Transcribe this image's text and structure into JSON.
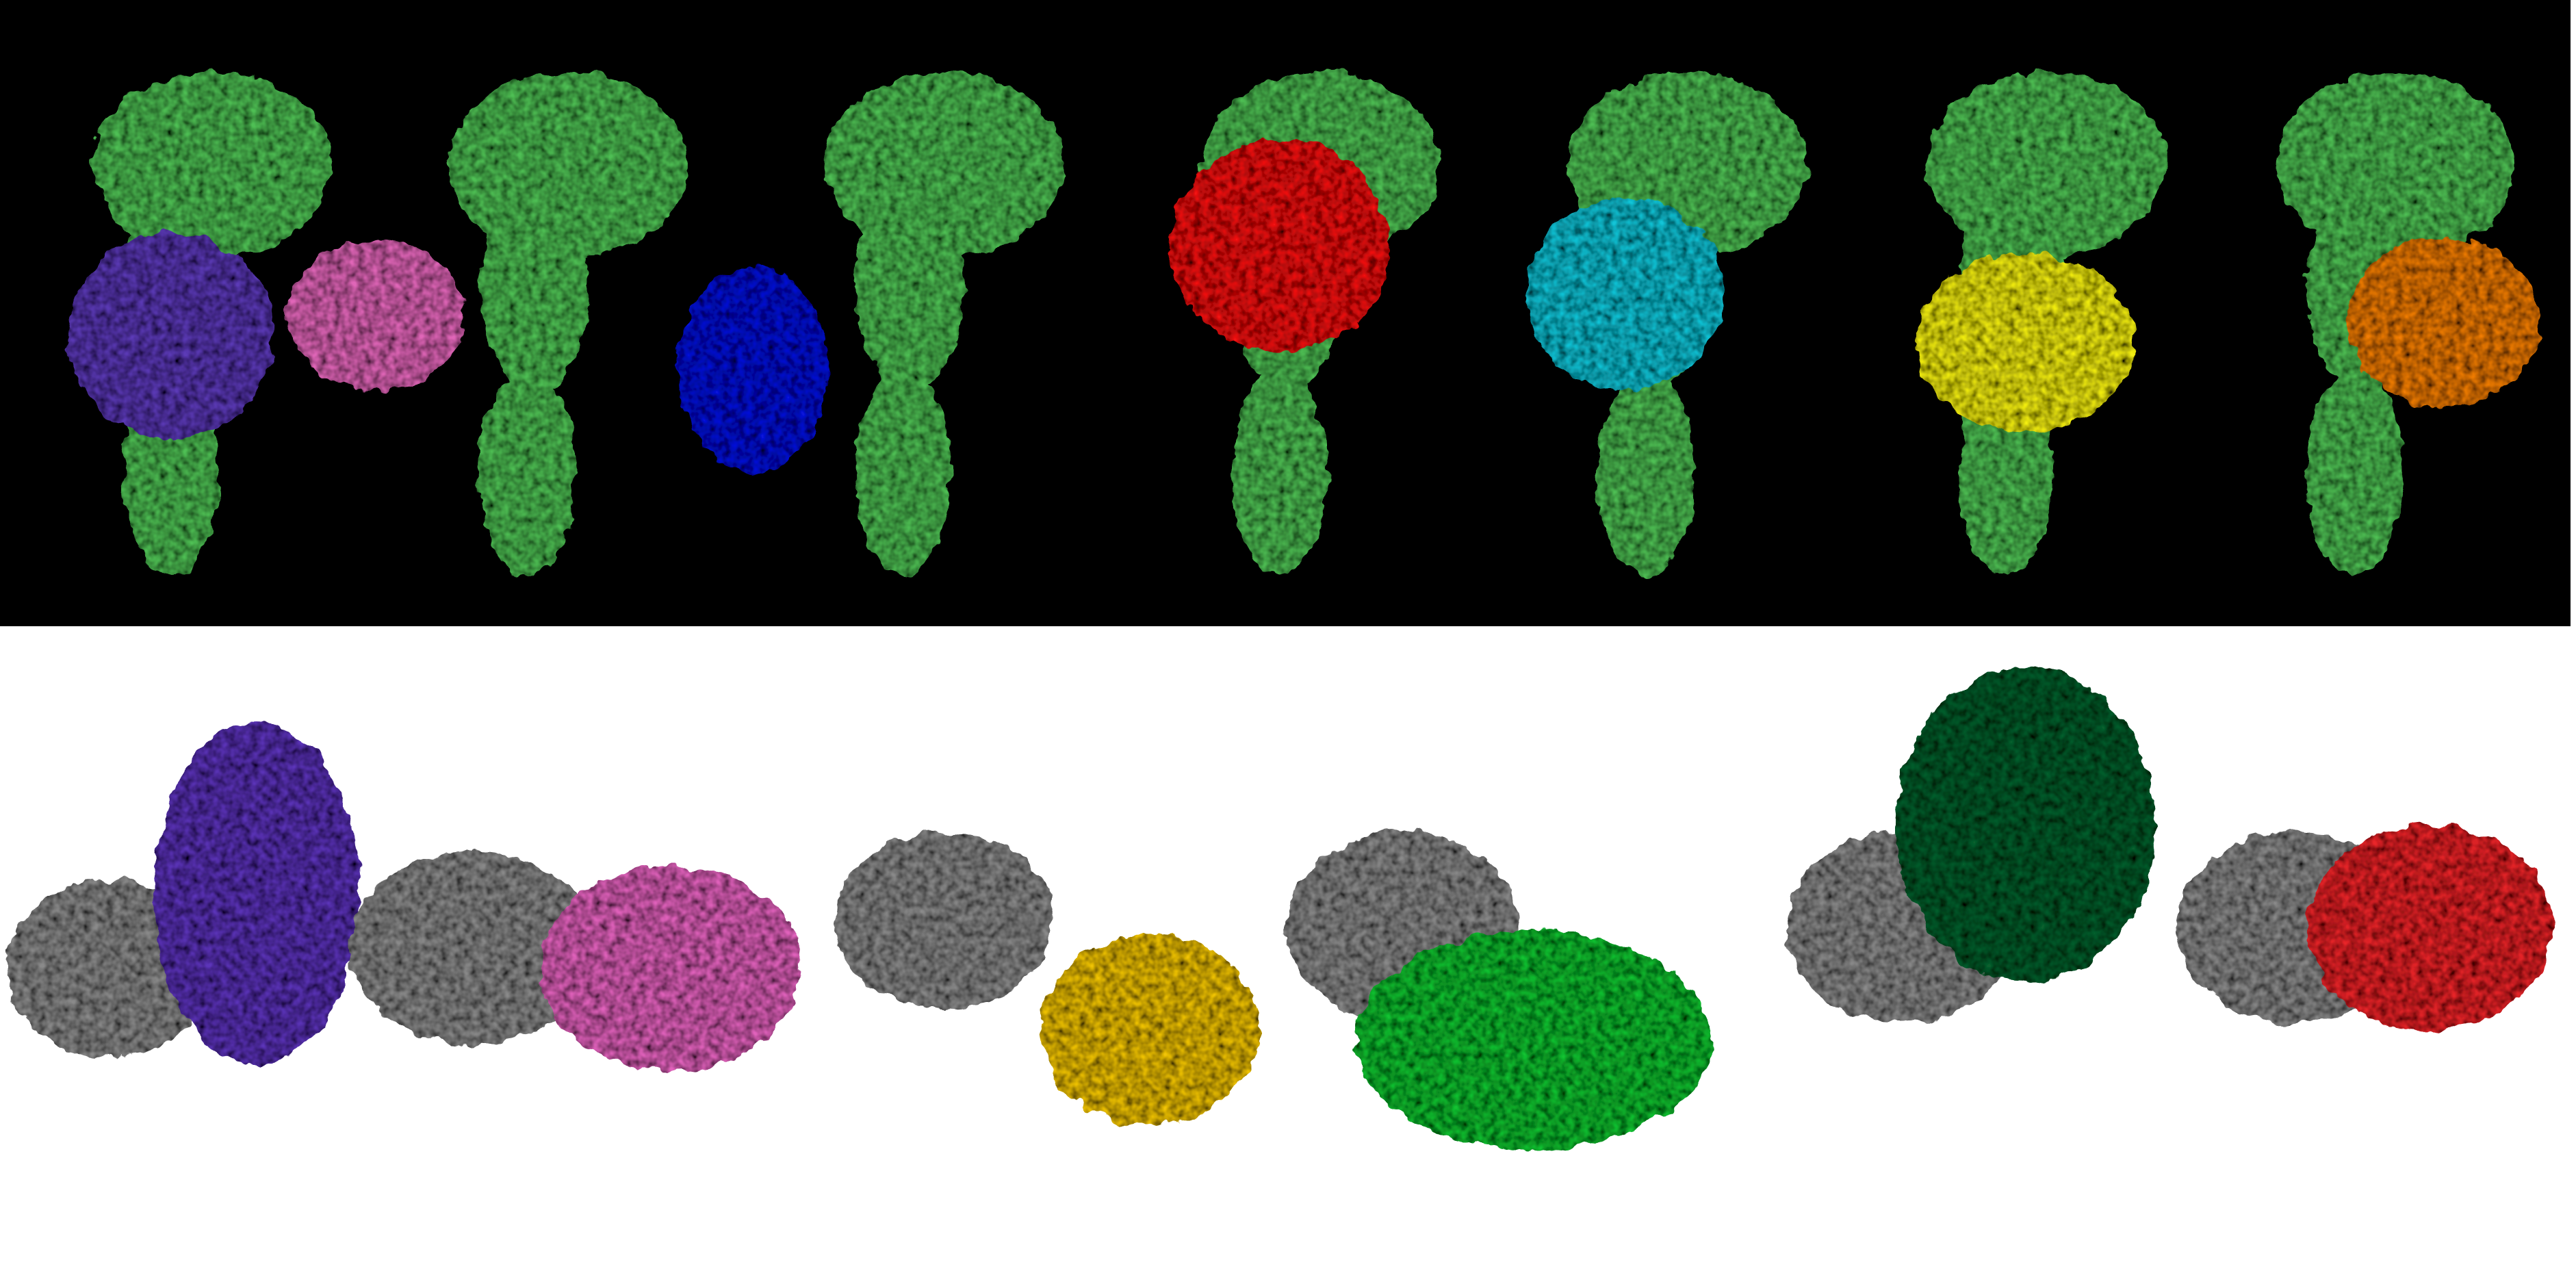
{
  "figure": {
    "top_panel": {
      "background": "#000000",
      "receptor_color": "#4fbf55",
      "complexes": [
        {
          "label": "",
          "partner_color": "#5b3ab6"
        },
        {
          "label": "",
          "partner_color": "#e066b8"
        },
        {
          "label": "",
          "partner_color": "#0a17d8"
        },
        {
          "label": "",
          "partner_color": "#f01515"
        },
        {
          "label": "",
          "partner_color": "#16c3d6"
        },
        {
          "label": "",
          "partner_color": "#f3ee15"
        },
        {
          "label": "",
          "partner_color": "#f07d0a"
        }
      ]
    },
    "bottom_panel": {
      "background": "#ffffff",
      "receptor_color": "#8a8a8a",
      "complexes": [
        {
          "label": "",
          "partner_color": "#5b36b8"
        },
        {
          "label": "",
          "partner_color": "#e062bb"
        },
        {
          "label": "",
          "partner_color": "#efc20d"
        },
        {
          "label": "",
          "partner_color": "#16c032"
        },
        {
          "label": "",
          "partner_color": "#0b5e2e"
        },
        {
          "label": "",
          "partner_color": "#e8262c"
        }
      ]
    }
  }
}
